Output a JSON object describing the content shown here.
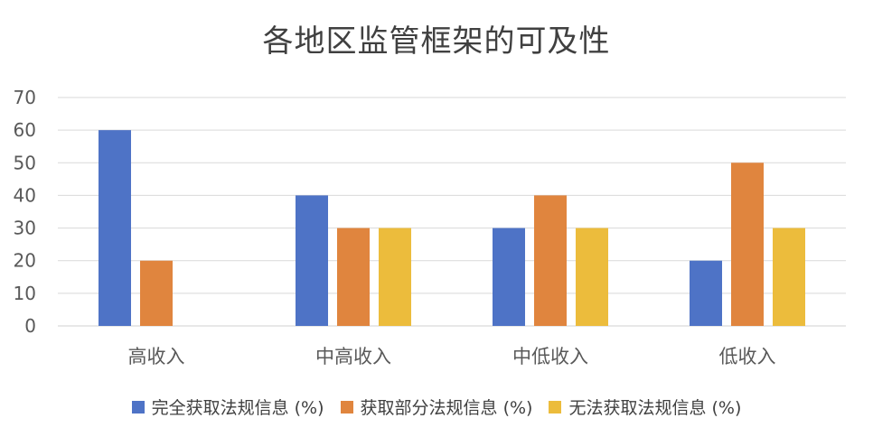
{
  "chart_data": {
    "type": "bar",
    "title": "各地区监管框架的可及性",
    "xlabel": "",
    "ylabel": "",
    "categories": [
      "高收入",
      "中高收入",
      "中低收入",
      "低收入"
    ],
    "series": [
      {
        "name": "完全获取法规信息 (%)",
        "values": [
          60,
          40,
          30,
          20
        ],
        "color": "#4e73c6"
      },
      {
        "name": "获取部分法规信息 (%)",
        "values": [
          20,
          30,
          40,
          50
        ],
        "color": "#e0853e"
      },
      {
        "name": "无法获取法规信息 (%)",
        "values": [
          null,
          30,
          30,
          30
        ],
        "color": "#ecbc3c"
      }
    ],
    "ylim": [
      0,
      70
    ],
    "yticks": [
      0,
      10,
      20,
      30,
      40,
      50,
      60,
      70
    ],
    "grid": true,
    "legend_position": "bottom"
  }
}
